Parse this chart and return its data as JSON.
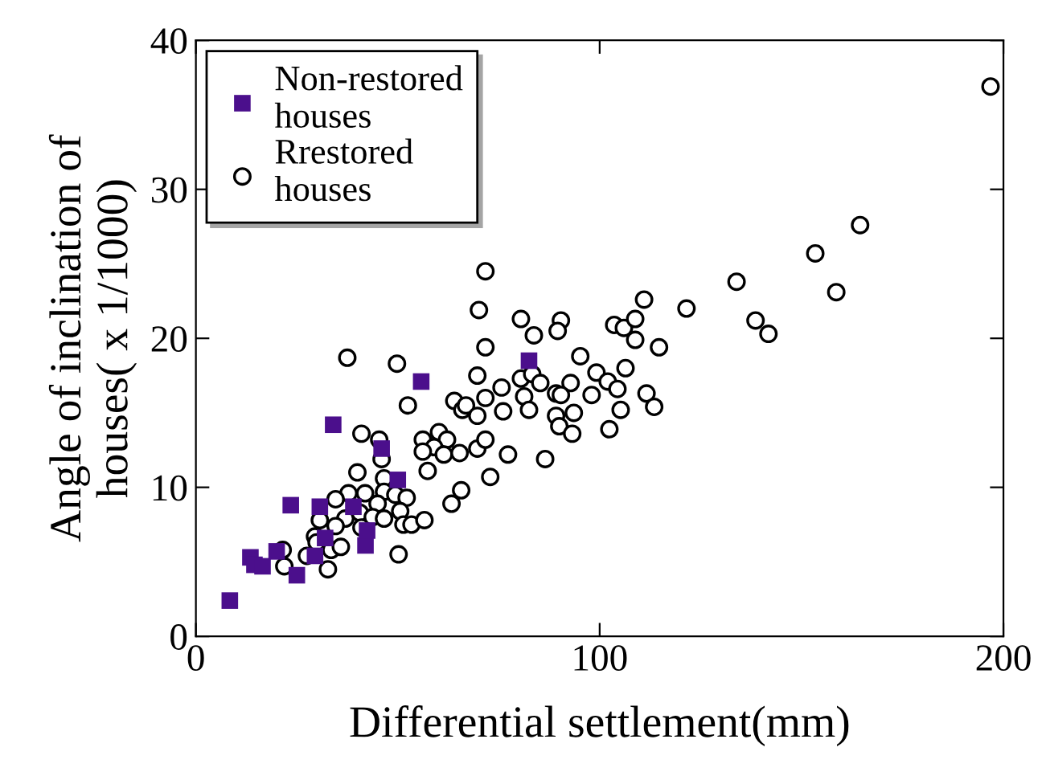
{
  "chart_data": {
    "type": "scatter",
    "xlabel": "Differential settlement(mm)",
    "ylabel": "Angle of inclination of\nhouses( x 1/1000)",
    "xlim": [
      0,
      200
    ],
    "ylim": [
      0,
      40
    ],
    "xticks": [
      0,
      100,
      200
    ],
    "yticks": [
      0,
      10,
      20,
      30,
      40
    ],
    "grid": false,
    "legend": "top left",
    "series": [
      {
        "name": "Non-restored\nhouses",
        "color": "#4b0f8c",
        "marker": "square",
        "x": [
          8.4,
          13.5,
          14.5,
          16.5,
          25,
          23.5,
          34,
          20,
          30.7,
          32,
          29.5,
          39,
          42,
          42.4,
          46,
          50,
          55.8,
          82.5
        ],
        "values": [
          2.4,
          5.3,
          4.8,
          4.7,
          4.1,
          8.8,
          14.2,
          5.7,
          8.7,
          6.6,
          5.4,
          8.7,
          6.1,
          7.1,
          12.6,
          10.5,
          17.1,
          18.5
        ]
      },
      {
        "name": "Rrestored\nhouses",
        "color": "#000000",
        "marker": "circle",
        "x": [
          37.5,
          49.8,
          52.5,
          64,
          66,
          41,
          45.4,
          46,
          40,
          46.6,
          37.8,
          34.6,
          41.9,
          46.6,
          49.4,
          52.2,
          45,
          40.6,
          37,
          34.6,
          30.7,
          41,
          43.8,
          46.6,
          50.6,
          51.4,
          53.4,
          56.6,
          29.5,
          29.9,
          27.5,
          33.5,
          35.9,
          32.7,
          21.5,
          21.9,
          50.2,
          56.2,
          60.2,
          62.2,
          59,
          61.4,
          65.3,
          56.2,
          57.4,
          65.7,
          63.3,
          71.7,
          70.1,
          80.5,
          90.4,
          89.6,
          83.7,
          111,
          133.9,
          121.5,
          138.6,
          141.8,
          103.6,
          106,
          108.8,
          108.8,
          114.7,
          71.7,
          95.2,
          69.7,
          80.5,
          83.3,
          85.3,
          75.7,
          99.2,
          102,
          106.4,
          92.8,
          104.4,
          66.9,
          71.7,
          69.7,
          76.1,
          81.3,
          82.5,
          89.2,
          90.4,
          89.2,
          93.6,
          90,
          93.2,
          98,
          102.4,
          105.2,
          111.6,
          113.5,
          69.7,
          71.7,
          77.3,
          86.5,
          72.9,
          196.8,
          164.5,
          153.4,
          158.6
        ],
        "values": [
          18.7,
          18.3,
          15.5,
          15.8,
          15.2,
          13.6,
          13.2,
          11.9,
          11,
          10.6,
          9.6,
          9.2,
          9.6,
          9.7,
          9.5,
          9.3,
          8.9,
          8.3,
          7.9,
          7.4,
          7.8,
          7.3,
          8,
          7.9,
          8.4,
          7.5,
          7.5,
          7.8,
          6.7,
          6.3,
          5.4,
          5.8,
          6,
          4.5,
          5.8,
          4.7,
          5.5,
          13.2,
          13.7,
          13.2,
          12.7,
          12.2,
          12.3,
          12.4,
          11.1,
          9.8,
          8.9,
          24.5,
          21.9,
          21.3,
          21.2,
          20.5,
          20.2,
          22.6,
          23.8,
          22,
          21.2,
          20.3,
          20.9,
          20.7,
          21.3,
          19.9,
          19.4,
          19.4,
          18.8,
          17.5,
          17.3,
          17.6,
          17,
          16.7,
          17.7,
          17.1,
          18,
          17,
          16.6,
          15.5,
          16,
          14.8,
          15.1,
          16.1,
          15.2,
          16.3,
          16.2,
          14.8,
          15,
          14.1,
          13.6,
          16.2,
          13.9,
          15.2,
          16.3,
          15.4,
          12.6,
          13.2,
          12.2,
          11.9,
          10.7,
          36.9,
          27.6,
          25.7,
          23.1
        ]
      }
    ]
  }
}
